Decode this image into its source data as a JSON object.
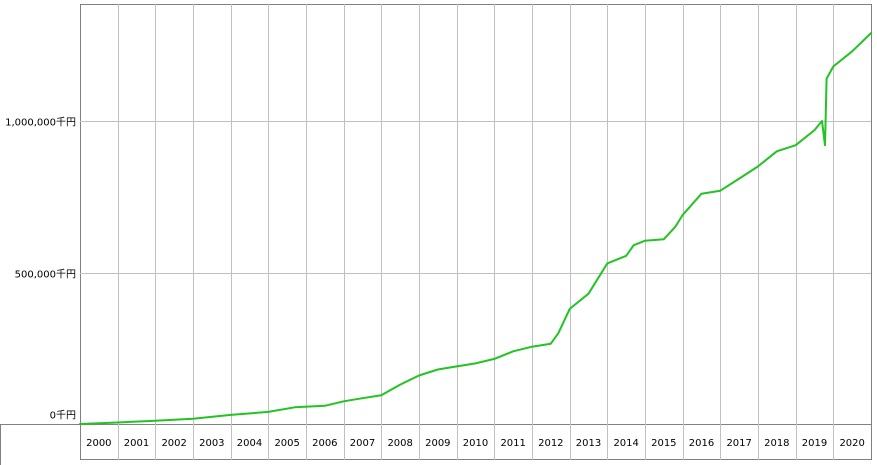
{
  "chart_data": {
    "type": "line",
    "title": "",
    "xlabel": "",
    "ylabel": "",
    "y_ticks": [
      {
        "value": 0,
        "label": "0千円"
      },
      {
        "value": 500000,
        "label": "500,000千円"
      },
      {
        "value": 1000000,
        "label": "1,000,000千円"
      }
    ],
    "x_ticks": [
      "2000",
      "2001",
      "2002",
      "2003",
      "2004",
      "2005",
      "2006",
      "2007",
      "2008",
      "2009",
      "2010",
      "2011",
      "2012",
      "2013",
      "2014",
      "2015",
      "2016",
      "2017",
      "2018",
      "2019",
      "2020"
    ],
    "xlim": [
      2000.0,
      2021.0
    ],
    "ylim": [
      -5000,
      1300000
    ],
    "grid": true,
    "legend": "none",
    "colors": {
      "series": "#22c322",
      "grid": "#c0c0c0",
      "frame": "#808080"
    },
    "series": [
      {
        "name": "",
        "points": [
          [
            2000.0,
            0
          ],
          [
            2001.0,
            5000
          ],
          [
            2002.0,
            11000
          ],
          [
            2003.0,
            17000
          ],
          [
            2004.0,
            30000
          ],
          [
            2005.0,
            40000
          ],
          [
            2005.7,
            55000
          ],
          [
            2006.5,
            60000
          ],
          [
            2007.0,
            75000
          ],
          [
            2007.5,
            85000
          ],
          [
            2008.0,
            95000
          ],
          [
            2008.5,
            130000
          ],
          [
            2009.0,
            160000
          ],
          [
            2009.5,
            180000
          ],
          [
            2010.0,
            190000
          ],
          [
            2010.5,
            200000
          ],
          [
            2011.0,
            215000
          ],
          [
            2011.5,
            240000
          ],
          [
            2012.0,
            255000
          ],
          [
            2012.5,
            265000
          ],
          [
            2012.7,
            300000
          ],
          [
            2013.0,
            380000
          ],
          [
            2013.5,
            430000
          ],
          [
            2014.0,
            530000
          ],
          [
            2014.5,
            555000
          ],
          [
            2014.7,
            590000
          ],
          [
            2015.0,
            605000
          ],
          [
            2015.5,
            610000
          ],
          [
            2015.8,
            650000
          ],
          [
            2016.0,
            690000
          ],
          [
            2016.5,
            760000
          ],
          [
            2017.0,
            770000
          ],
          [
            2017.5,
            810000
          ],
          [
            2018.0,
            850000
          ],
          [
            2018.5,
            900000
          ],
          [
            2019.0,
            920000
          ],
          [
            2019.5,
            970000
          ],
          [
            2019.7,
            1000000
          ],
          [
            2019.78,
            920000
          ],
          [
            2019.82,
            1140000
          ],
          [
            2020.0,
            1180000
          ],
          [
            2020.5,
            1230000
          ],
          [
            2021.0,
            1290000
          ]
        ]
      }
    ]
  }
}
